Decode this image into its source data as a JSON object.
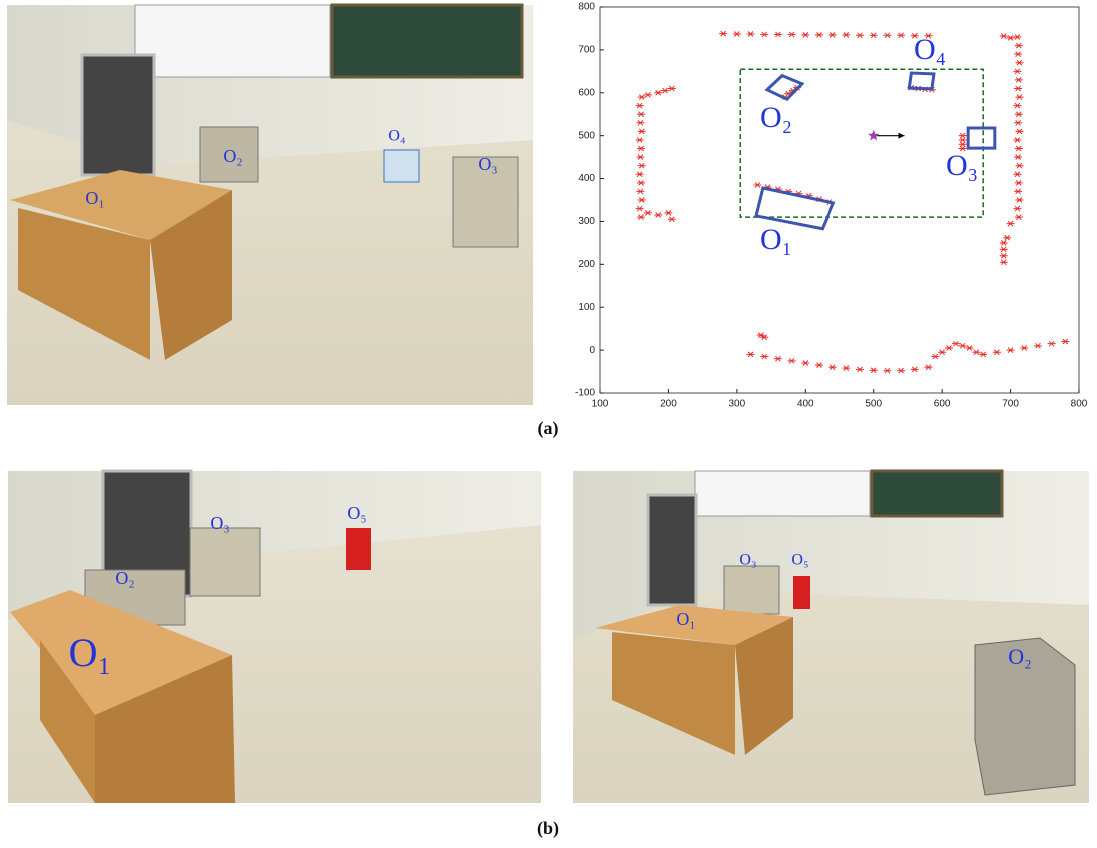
{
  "photos": [
    {
      "labels": [
        "O₁",
        "O₂",
        "O₃",
        "O₄"
      ]
    },
    {
      "labels": [
        "O₁",
        "O₂",
        "O₃",
        "O₅"
      ]
    },
    {
      "labels": [
        "O₁",
        "O₂",
        "O₃",
        "O₅"
      ]
    }
  ],
  "captions": [
    "(a)",
    "(b)"
  ],
  "chart_data": {
    "type": "scatter",
    "xlim": [
      100,
      800
    ],
    "ylim": [
      -100,
      800
    ],
    "xticks": [
      100,
      200,
      300,
      400,
      500,
      600,
      700,
      800
    ],
    "yticks": [
      -100,
      0,
      100,
      200,
      300,
      400,
      500,
      600,
      700,
      800
    ],
    "scan_color": "#e8302a",
    "scans": [
      {
        "x": [
          280,
          300,
          320,
          340,
          360,
          380,
          400,
          420,
          440,
          460,
          480,
          500,
          520,
          540,
          560,
          580
        ],
        "y": [
          738,
          737,
          737,
          736,
          736,
          736,
          735,
          735,
          735,
          735,
          734,
          734,
          734,
          734,
          733,
          733
        ]
      },
      {
        "x": [
          160,
          158,
          161,
          159,
          160,
          158,
          161,
          159,
          160,
          158,
          161,
          159,
          160,
          158,
          161
        ],
        "y": [
          310,
          330,
          350,
          370,
          390,
          410,
          430,
          450,
          470,
          490,
          510,
          530,
          550,
          570,
          590
        ]
      },
      {
        "x": [
          170,
          185,
          195,
          205,
          170,
          185,
          200,
          205
        ],
        "y": [
          595,
          600,
          605,
          610,
          320,
          315,
          320,
          305
        ]
      },
      {
        "x": [
          712,
          710,
          713,
          711,
          712,
          710,
          713,
          711,
          712,
          710,
          713,
          711,
          712,
          710,
          713,
          711,
          712,
          710,
          713,
          711,
          712,
          710,
          700,
          690
        ],
        "y": [
          310,
          330,
          350,
          370,
          390,
          410,
          430,
          450,
          470,
          490,
          510,
          530,
          550,
          570,
          590,
          610,
          630,
          650,
          670,
          690,
          710,
          730,
          728,
          732
        ]
      },
      {
        "x": [
          690,
          690,
          690,
          690,
          695,
          700
        ],
        "y": [
          205,
          220,
          235,
          250,
          262,
          295
        ]
      },
      {
        "x": [
          320,
          340,
          360,
          380,
          400,
          420,
          440,
          460,
          480,
          500,
          520,
          540,
          560,
          580,
          590,
          600,
          610,
          620,
          630,
          640,
          650,
          660,
          680,
          700,
          720,
          740,
          760,
          780,
          335,
          340
        ],
        "y": [
          -10,
          -15,
          -20,
          -25,
          -30,
          -35,
          -40,
          -42,
          -45,
          -47,
          -48,
          -48,
          -45,
          -40,
          -15,
          -5,
          5,
          15,
          10,
          5,
          -5,
          -10,
          -5,
          0,
          5,
          10,
          15,
          20,
          35,
          30
        ]
      },
      {
        "x": [
          330,
          345,
          360,
          375,
          390,
          405,
          420,
          435,
          370,
          375,
          382,
          388,
          555,
          565,
          575,
          585,
          630,
          630,
          630,
          630
        ],
        "y": [
          385,
          380,
          375,
          370,
          365,
          360,
          352,
          345,
          590,
          598,
          605,
          612,
          612,
          610,
          608,
          607,
          470,
          480,
          490,
          500
        ]
      }
    ],
    "boxes": [
      {
        "label": "O₁",
        "x": [
          328,
          338,
          441,
          425
        ],
        "y": [
          313,
          378,
          343,
          283
        ]
      },
      {
        "label": "O₂",
        "x": [
          344,
          366,
          395,
          373
        ],
        "y": [
          607,
          640,
          621,
          585
        ]
      },
      {
        "label": "O₃",
        "x": [
          638,
          638,
          677,
          677
        ],
        "y": [
          518,
          471,
          471,
          518
        ]
      },
      {
        "label": "O₄",
        "x": [
          552,
          555,
          588,
          585
        ],
        "y": [
          611,
          646,
          644,
          609
        ]
      }
    ],
    "box_color": "#3b55b0",
    "region": {
      "x": [
        305,
        660
      ],
      "y": [
        310,
        655
      ],
      "color": "#1e6b1e"
    },
    "robot": {
      "x": 500,
      "y": 500,
      "heading_x": 545,
      "color": "#9b3fb0"
    }
  }
}
